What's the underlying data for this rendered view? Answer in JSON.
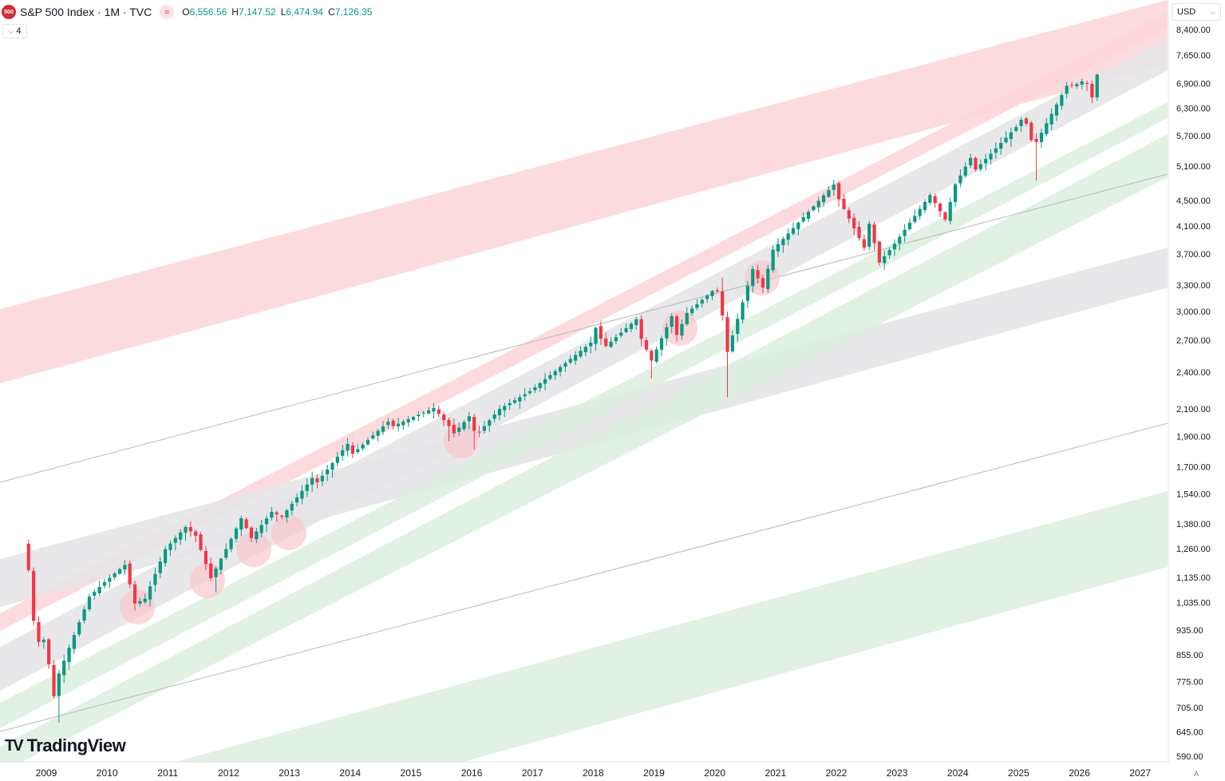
{
  "header": {
    "symbol_badge": "500",
    "title": "S&P 500 Index · 1M · TVC",
    "wave_icon": "wave-icon",
    "ohlc": [
      {
        "key": "O",
        "value": "6,556.56"
      },
      {
        "key": "H",
        "value": "7,147.52"
      },
      {
        "key": "L",
        "value": "6,474.94"
      },
      {
        "key": "C",
        "value": "7,126.35"
      }
    ],
    "collapse_label": "4",
    "currency": "USD"
  },
  "branding": {
    "logo_mark": "TV",
    "logo_text": "TradingView"
  },
  "auto_scale_label": "A",
  "colors": {
    "up": "#089981",
    "down": "#f23645",
    "red_band": "#fcd5d8",
    "green_band": "#dcefdf",
    "gray_band": "#e4e4e6",
    "circle": "#f8c7cc"
  },
  "chart_data": {
    "type": "candlestick",
    "scale": "log",
    "grid": false,
    "title": "S&P 500 Index · 1M · TVC",
    "x_ticks": [
      "2009",
      "2010",
      "2011",
      "2012",
      "2013",
      "2014",
      "2015",
      "2016",
      "2017",
      "2018",
      "2019",
      "2020",
      "2021",
      "2022",
      "2023",
      "2024",
      "2025",
      "2026",
      "2027"
    ],
    "y_ticks": [
      "8,400.00",
      "7,650.00",
      "6,900.00",
      "6,300.00",
      "5,700.00",
      "5,100.00",
      "4,500.00",
      "4,100.00",
      "3,700.00",
      "3,300.00",
      "3,000.00",
      "2,700.00",
      "2,400.00",
      "2,100.00",
      "1,900.00",
      "1,700.00",
      "1,540.00",
      "1,380.00",
      "1,260.00",
      "1,135.00",
      "1,035.00",
      "935.00",
      "855.00",
      "775.00",
      "705.00",
      "645.00",
      "590.00"
    ],
    "anchors": [
      [
        "2008-08",
        1283
      ],
      [
        "2008-09",
        1165
      ],
      [
        "2008-10",
        968
      ],
      [
        "2008-11",
        896
      ],
      [
        "2008-12",
        903
      ],
      [
        "2009-01",
        826
      ],
      [
        "2009-02",
        735
      ],
      [
        "2009-03",
        798
      ],
      [
        "2009-06",
        919
      ],
      [
        "2009-09",
        1057
      ],
      [
        "2009-12",
        1115
      ],
      [
        "2010-03",
        1169
      ],
      [
        "2010-04",
        1187
      ],
      [
        "2010-06",
        1031
      ],
      [
        "2010-08",
        1049
      ],
      [
        "2010-12",
        1258
      ],
      [
        "2011-04",
        1364
      ],
      [
        "2011-06",
        1321
      ],
      [
        "2011-09",
        1131
      ],
      [
        "2011-12",
        1258
      ],
      [
        "2012-03",
        1408
      ],
      [
        "2012-05",
        1310
      ],
      [
        "2012-09",
        1441
      ],
      [
        "2012-11",
        1416
      ],
      [
        "2013-05",
        1631
      ],
      [
        "2013-06",
        1606
      ],
      [
        "2013-12",
        1848
      ],
      [
        "2014-01",
        1783
      ],
      [
        "2014-08",
        2003
      ],
      [
        "2014-09",
        1972
      ],
      [
        "2015-05",
        2107
      ],
      [
        "2015-08",
        1972
      ],
      [
        "2015-09",
        1920
      ],
      [
        "2015-12",
        2044
      ],
      [
        "2016-01",
        1940
      ],
      [
        "2016-02",
        1932
      ],
      [
        "2016-06",
        2099
      ],
      [
        "2016-12",
        2239
      ],
      [
        "2017-12",
        2674
      ],
      [
        "2018-01",
        2824
      ],
      [
        "2018-02",
        2714
      ],
      [
        "2018-03",
        2641
      ],
      [
        "2018-09",
        2914
      ],
      [
        "2018-10",
        2712
      ],
      [
        "2018-12",
        2507
      ],
      [
        "2019-04",
        2946
      ],
      [
        "2019-05",
        2752
      ],
      [
        "2019-07",
        2980
      ],
      [
        "2019-12",
        3231
      ],
      [
        "2020-01",
        3226
      ],
      [
        "2020-02",
        2954
      ],
      [
        "2020-03",
        2585
      ],
      [
        "2020-08",
        3500
      ],
      [
        "2020-10",
        3270
      ],
      [
        "2020-12",
        3756
      ],
      [
        "2021-12",
        4766
      ],
      [
        "2022-01",
        4516
      ],
      [
        "2022-06",
        3785
      ],
      [
        "2022-07",
        4130
      ],
      [
        "2022-09",
        3586
      ],
      [
        "2022-12",
        3840
      ],
      [
        "2023-07",
        4589
      ],
      [
        "2023-10",
        4194
      ],
      [
        "2023-12",
        4770
      ],
      [
        "2024-03",
        5254
      ],
      [
        "2024-04",
        5036
      ],
      [
        "2024-12",
        5882
      ],
      [
        "2025-01",
        6041
      ],
      [
        "2025-02",
        5955
      ],
      [
        "2025-03",
        5612
      ],
      [
        "2025-04",
        5569
      ],
      [
        "2025-10",
        6840
      ],
      [
        "2025-12",
        6880
      ],
      [
        "2026-01",
        6950
      ],
      [
        "2026-02",
        6900
      ],
      [
        "2026-03",
        6556.56
      ],
      [
        "2026-04",
        7126.35
      ]
    ],
    "last_candle": {
      "date": "2026-04",
      "open": 6556.56,
      "high": 7147.52,
      "low": 6474.94,
      "close": 7126.35
    },
    "wick_extremes": [
      {
        "date": "2009-03",
        "low": 667
      },
      {
        "date": "2011-10",
        "low": 1075
      },
      {
        "date": "2015-08",
        "low": 1867
      },
      {
        "date": "2016-01",
        "low": 1812
      },
      {
        "date": "2018-12",
        "low": 2346
      },
      {
        "date": "2020-02",
        "high": 3393
      },
      {
        "date": "2020-03",
        "low": 2192
      },
      {
        "date": "2022-01",
        "high": 4818
      },
      {
        "date": "2022-10",
        "low": 3492
      },
      {
        "date": "2025-04",
        "low": 4835
      }
    ],
    "ylim": [
      570,
      9300
    ],
    "xlim": [
      "2008-05",
      "2027-06"
    ]
  }
}
